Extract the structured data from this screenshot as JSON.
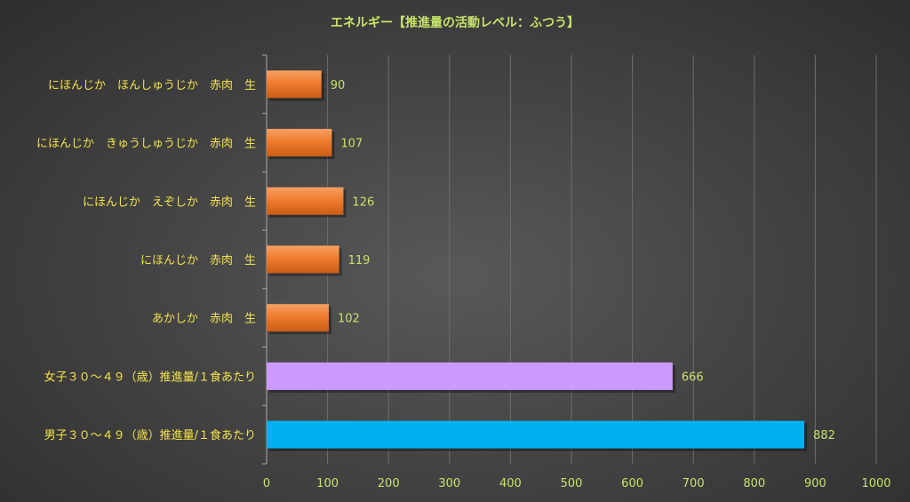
{
  "chart_data": {
    "type": "bar",
    "orientation": "horizontal",
    "title": "エネルギー【推進量の活動レベル：ふつう】",
    "categories": [
      "にほんじか　ほんしゅうじか　赤肉　生",
      "にほんじか　きゅうしゅうじか　赤肉　生",
      "にほんじか　えぞしか　赤肉　生",
      "にほんじか　赤肉　生",
      "あかしか　赤肉　生",
      "女子３０～４９（歳）推進量/１食あたり",
      "男子３０～４９（歳）推進量/１食あたり"
    ],
    "values": [
      90,
      107,
      126,
      119,
      102,
      666,
      882
    ],
    "bar_colors": [
      "#f07c2e",
      "#f07c2e",
      "#f07c2e",
      "#f07c2e",
      "#f07c2e",
      "#cc99ff",
      "#00b0f0"
    ],
    "xlim": [
      0,
      1000
    ],
    "xticks": [
      0,
      100,
      200,
      300,
      400,
      500,
      600,
      700,
      800,
      900,
      1000
    ],
    "grid": true,
    "data_labels": true,
    "xlabel": "",
    "ylabel": ""
  },
  "colors": {
    "title": "#c6e36a",
    "category_text": "#f4e34b",
    "tick_text": "#c6e36a",
    "data_label_text": "#c6e36a"
  }
}
